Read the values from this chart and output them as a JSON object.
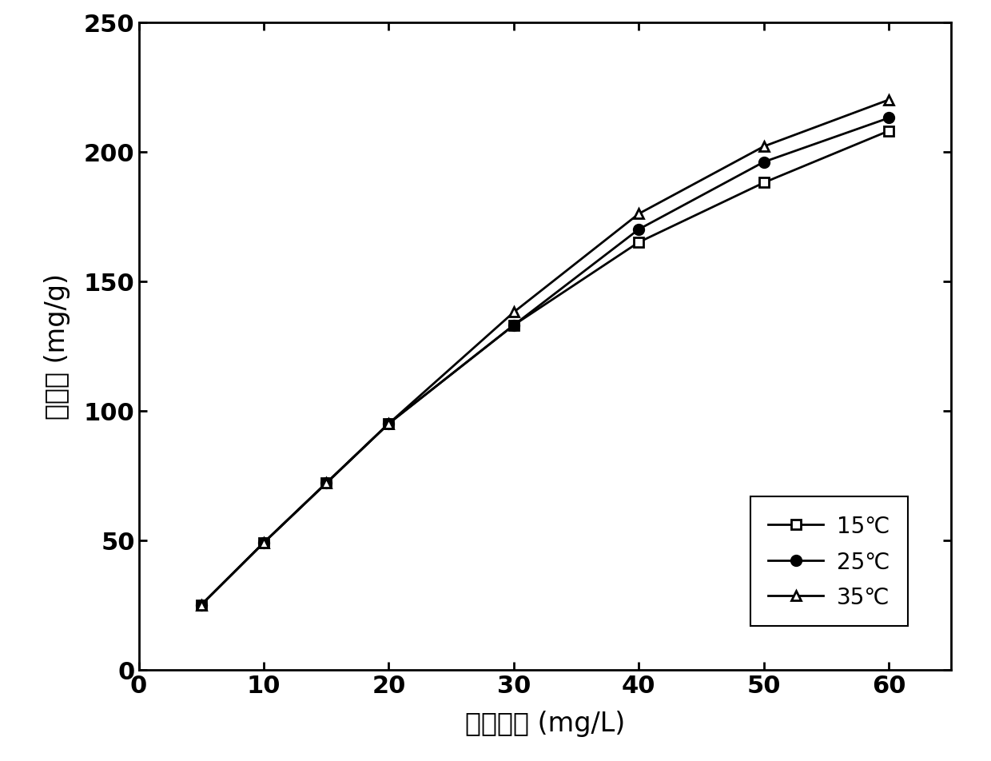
{
  "x": [
    5,
    10,
    15,
    20,
    30,
    40,
    50,
    60
  ],
  "y_15": [
    25,
    49,
    72,
    95,
    133,
    165,
    188,
    208
  ],
  "y_25": [
    25,
    49,
    72,
    95,
    133,
    170,
    196,
    213
  ],
  "y_35": [
    25,
    49,
    72,
    95,
    138,
    176,
    202,
    220
  ],
  "xlabel": "初始浓度 (mg/L)",
  "ylabel": "吸附量 (mg/g)",
  "legend_15": "15℃",
  "legend_25": "25℃",
  "legend_35": "35℃",
  "xlim": [
    0,
    65
  ],
  "ylim": [
    0,
    250
  ],
  "xticks": [
    0,
    10,
    20,
    30,
    40,
    50,
    60
  ],
  "yticks": [
    0,
    50,
    100,
    150,
    200,
    250
  ],
  "color": "#000000",
  "background_color": "#ffffff",
  "linewidth": 2.0,
  "marker_size": 9,
  "xlabel_fontsize": 24,
  "ylabel_fontsize": 24,
  "tick_fontsize": 22,
  "legend_fontsize": 20
}
